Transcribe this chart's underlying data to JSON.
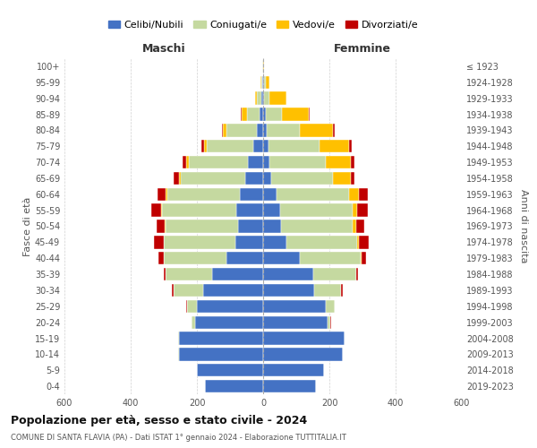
{
  "age_groups": [
    "0-4",
    "5-9",
    "10-14",
    "15-19",
    "20-24",
    "25-29",
    "30-34",
    "35-39",
    "40-44",
    "45-49",
    "50-54",
    "55-59",
    "60-64",
    "65-69",
    "70-74",
    "75-79",
    "80-84",
    "85-89",
    "90-94",
    "95-99",
    "100+"
  ],
  "birth_years": [
    "2019-2023",
    "2014-2018",
    "2009-2013",
    "2004-2008",
    "1999-2003",
    "1994-1998",
    "1989-1993",
    "1984-1988",
    "1979-1983",
    "1974-1978",
    "1969-1973",
    "1964-1968",
    "1959-1963",
    "1954-1958",
    "1949-1953",
    "1944-1948",
    "1939-1943",
    "1934-1938",
    "1929-1933",
    "1924-1928",
    "≤ 1923"
  ],
  "maschi": {
    "celibi": [
      175,
      200,
      255,
      255,
      205,
      200,
      180,
      155,
      110,
      85,
      75,
      80,
      70,
      55,
      45,
      30,
      20,
      10,
      5,
      2,
      1
    ],
    "coniugati": [
      0,
      0,
      1,
      2,
      10,
      30,
      90,
      140,
      190,
      215,
      220,
      225,
      220,
      195,
      180,
      140,
      90,
      40,
      15,
      3,
      1
    ],
    "vedovi": [
      0,
      0,
      0,
      0,
      0,
      0,
      0,
      0,
      1,
      1,
      2,
      4,
      5,
      5,
      8,
      8,
      12,
      15,
      5,
      2,
      0
    ],
    "divorziati": [
      0,
      0,
      0,
      0,
      2,
      2,
      5,
      5,
      15,
      30,
      25,
      30,
      25,
      15,
      10,
      8,
      3,
      2,
      0,
      0,
      0
    ]
  },
  "femmine": {
    "nubili": [
      160,
      185,
      240,
      245,
      195,
      190,
      155,
      150,
      110,
      70,
      55,
      50,
      40,
      25,
      20,
      15,
      10,
      8,
      4,
      2,
      0
    ],
    "coniugate": [
      0,
      0,
      1,
      2,
      8,
      25,
      80,
      130,
      185,
      215,
      215,
      220,
      220,
      185,
      170,
      155,
      100,
      50,
      15,
      5,
      1
    ],
    "vedove": [
      0,
      0,
      0,
      0,
      0,
      0,
      1,
      2,
      2,
      5,
      10,
      15,
      30,
      55,
      75,
      90,
      100,
      80,
      50,
      12,
      1
    ],
    "divorziate": [
      0,
      0,
      0,
      0,
      2,
      2,
      5,
      5,
      15,
      30,
      25,
      30,
      25,
      12,
      10,
      8,
      5,
      3,
      0,
      0,
      0
    ]
  },
  "colors": {
    "celibi_nubili": "#4472c4",
    "coniugati": "#c5d9a0",
    "vedovi": "#ffc000",
    "divorziati": "#c00000"
  },
  "title": "Popolazione per età, sesso e stato civile - 2024",
  "subtitle": "COMUNE DI SANTA FLAVIA (PA) - Dati ISTAT 1° gennaio 2024 - Elaborazione TUTTITALIA.IT",
  "xlabel_left": "Maschi",
  "xlabel_right": "Femmine",
  "ylabel_left": "Fasce di età",
  "ylabel_right": "Anni di nascita",
  "xlim": 600,
  "legend_labels": [
    "Celibi/Nubili",
    "Coniugati/e",
    "Vedovi/e",
    "Divorziati/e"
  ],
  "background_color": "#ffffff",
  "grid_color": "#cccccc"
}
